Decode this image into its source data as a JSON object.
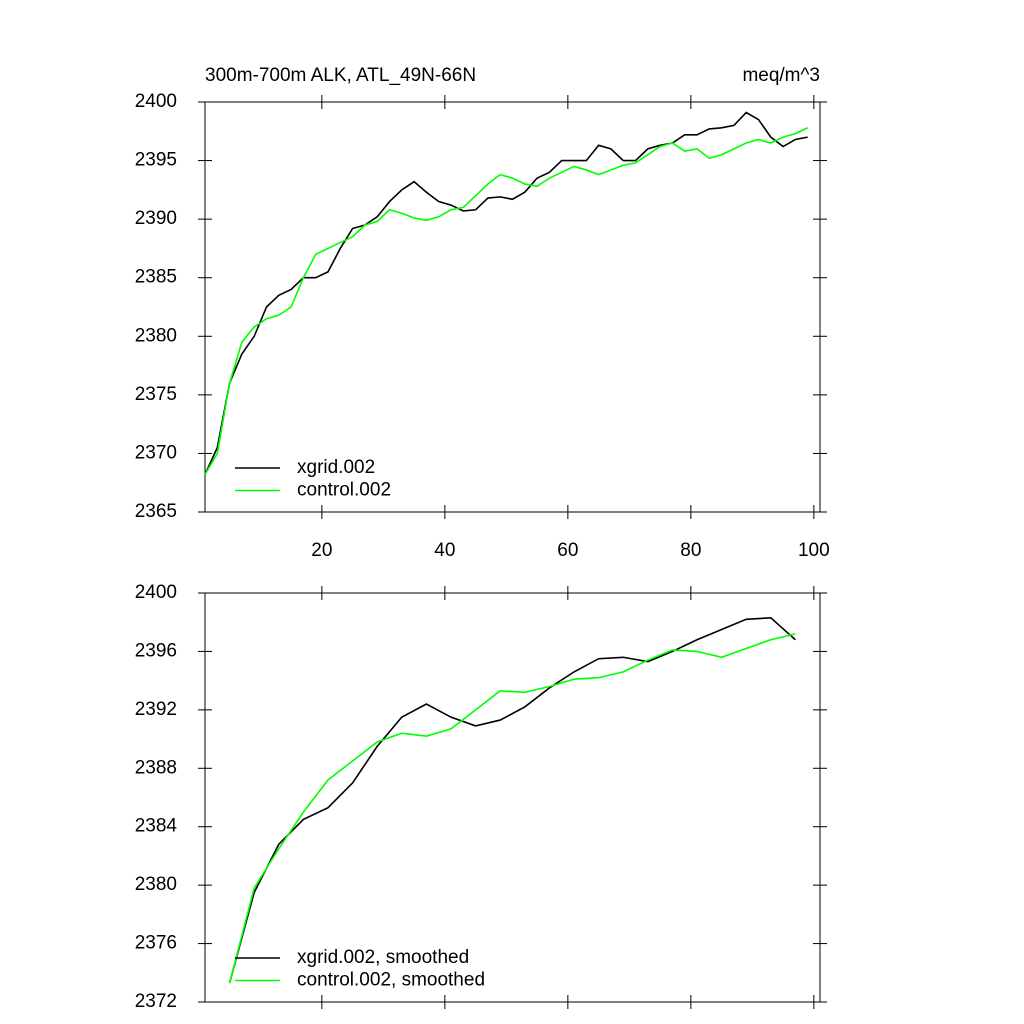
{
  "chart_data": [
    {
      "type": "line",
      "title": "300m-700m ALK, ATL_49N-66N",
      "subtitle": "meq/m^3",
      "x": [
        1,
        3,
        5,
        7,
        9,
        11,
        13,
        15,
        17,
        19,
        21,
        23,
        25,
        27,
        29,
        31,
        33,
        35,
        37,
        39,
        41,
        43,
        45,
        47,
        49,
        51,
        53,
        55,
        57,
        59,
        61,
        63,
        65,
        67,
        69,
        71,
        73,
        75,
        77,
        79,
        81,
        83,
        85,
        87,
        89,
        91,
        93,
        95,
        97,
        99
      ],
      "series": [
        {
          "name": "xgrid.002",
          "color": "#000000",
          "values": [
            2368.2,
            2370.5,
            2376,
            2378.5,
            2380,
            2382.5,
            2383.5,
            2384,
            2385,
            2385,
            2385.5,
            2387.5,
            2389.2,
            2389.5,
            2390.2,
            2391.5,
            2392.5,
            2393.2,
            2392.3,
            2391.5,
            2391.2,
            2390.7,
            2390.8,
            2391.8,
            2391.9,
            2391.7,
            2392.3,
            2393.5,
            2394,
            2395,
            2395,
            2395,
            2396.3,
            2396,
            2395,
            2395,
            2396,
            2396.3,
            2396.5,
            2397.2,
            2397.2,
            2397.7,
            2397.8,
            2398,
            2399.1,
            2398.5,
            2397,
            2396.2,
            2396.8,
            2397
          ]
        },
        {
          "name": "control.002",
          "color": "#00ff00",
          "values": [
            2368.2,
            2370,
            2376,
            2379.5,
            2380.8,
            2381.5,
            2381.8,
            2382.5,
            2385,
            2387,
            2387.5,
            2388,
            2388.5,
            2389.5,
            2389.8,
            2390.8,
            2390.5,
            2390.1,
            2389.9,
            2390.2,
            2390.8,
            2391,
            2392,
            2393,
            2393.8,
            2393.5,
            2393,
            2392.8,
            2393.5,
            2394,
            2394.5,
            2394.2,
            2393.8,
            2394.2,
            2394.6,
            2394.8,
            2395.5,
            2396.2,
            2396.5,
            2395.8,
            2396,
            2395.2,
            2395.5,
            2396,
            2396.5,
            2396.8,
            2396.5,
            2397,
            2397.3,
            2397.8
          ]
        }
      ],
      "xlim": [
        1,
        101
      ],
      "xticks": [
        20,
        40,
        60,
        80,
        100
      ],
      "ylim": [
        2365,
        2400
      ],
      "yticks": [
        2365,
        2370,
        2375,
        2380,
        2385,
        2390,
        2395,
        2400
      ],
      "legend": "lower left"
    },
    {
      "type": "line",
      "x": [
        5,
        9,
        13,
        17,
        21,
        25,
        29,
        33,
        37,
        41,
        45,
        49,
        53,
        57,
        61,
        65,
        69,
        73,
        77,
        81,
        85,
        89,
        93,
        97
      ],
      "series": [
        {
          "name": "xgrid.002, smoothed",
          "color": "#000000",
          "values": [
            2373.3,
            2379.5,
            2382.8,
            2384.5,
            2385.3,
            2387,
            2389.5,
            2391.5,
            2392.4,
            2391.5,
            2390.9,
            2391.3,
            2392.2,
            2393.5,
            2394.6,
            2395.5,
            2395.6,
            2395.3,
            2396,
            2396.8,
            2397.5,
            2398.2,
            2398.3,
            2396.8
          ]
        },
        {
          "name": "control.002, smoothed",
          "color": "#00ff00",
          "values": [
            2373.3,
            2379.8,
            2382.5,
            2385,
            2387.2,
            2388.5,
            2389.8,
            2390.4,
            2390.2,
            2390.7,
            2392,
            2393.3,
            2393.2,
            2393.6,
            2394.1,
            2394.2,
            2394.6,
            2395.4,
            2396.1,
            2396,
            2395.6,
            2396.2,
            2396.8,
            2397.2
          ]
        }
      ],
      "xlim": [
        1,
        101
      ],
      "xticks": [
        20,
        40,
        60,
        80,
        100
      ],
      "ylim": [
        2372,
        2400
      ],
      "yticks": [
        2372,
        2376,
        2380,
        2384,
        2388,
        2392,
        2396,
        2400
      ],
      "legend": "lower left"
    }
  ]
}
